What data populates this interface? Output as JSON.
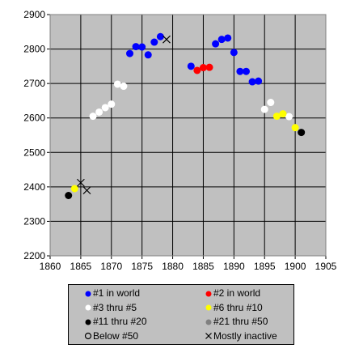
{
  "chart_data": {
    "type": "scatter",
    "xlim": [
      1860,
      1905
    ],
    "ylim": [
      2200,
      2900
    ],
    "x_ticks": [
      1860,
      1865,
      1870,
      1875,
      1880,
      1885,
      1890,
      1895,
      1900,
      1905
    ],
    "y_ticks": [
      2200,
      2300,
      2400,
      2500,
      2600,
      2700,
      2800,
      2900
    ],
    "grid": true,
    "background": "#c0c0c0",
    "legend_position": "bottom",
    "series": [
      {
        "name": "#1 in world",
        "marker": "dot",
        "color": "#0000ff",
        "points": [
          [
            1873,
            2787
          ],
          [
            1874,
            2807
          ],
          [
            1875,
            2806
          ],
          [
            1876,
            2783
          ],
          [
            1877,
            2820
          ],
          [
            1878,
            2836
          ],
          [
            1883,
            2750
          ],
          [
            1887,
            2815
          ],
          [
            1888,
            2828
          ],
          [
            1889,
            2832
          ],
          [
            1890,
            2790
          ],
          [
            1891,
            2735
          ],
          [
            1892,
            2735
          ],
          [
            1893,
            2705
          ],
          [
            1894,
            2707
          ]
        ]
      },
      {
        "name": "#2 in world",
        "marker": "dot",
        "color": "#ff0000",
        "points": [
          [
            1884,
            2738
          ],
          [
            1885,
            2746
          ],
          [
            1886,
            2747
          ]
        ]
      },
      {
        "name": "#3 thru #5",
        "marker": "dot",
        "color": "#ffffff",
        "points": [
          [
            1867,
            2605
          ],
          [
            1868,
            2617
          ],
          [
            1869,
            2630
          ],
          [
            1870,
            2640
          ],
          [
            1871,
            2698
          ],
          [
            1872,
            2692
          ],
          [
            1895,
            2625
          ],
          [
            1896,
            2645
          ],
          [
            1899,
            2604
          ]
        ]
      },
      {
        "name": "#6 thru #10",
        "marker": "dot",
        "color": "#ffff00",
        "points": [
          [
            1864,
            2395
          ],
          [
            1897,
            2605
          ],
          [
            1898,
            2612
          ],
          [
            1900,
            2572
          ]
        ]
      },
      {
        "name": "#11 thru #20",
        "marker": "dot",
        "color": "#000000",
        "points": [
          [
            1863,
            2375
          ],
          [
            1901,
            2558
          ]
        ]
      },
      {
        "name": "#21 thru #50",
        "marker": "dot",
        "color": "#808080",
        "points": []
      },
      {
        "name": "Below #50",
        "marker": "ring",
        "color": "#000000",
        "points": []
      },
      {
        "name": "Mostly inactive",
        "marker": "cross",
        "color": "#000000",
        "points": [
          [
            1865,
            2412
          ],
          [
            1866,
            2390
          ],
          [
            1879,
            2828
          ]
        ]
      }
    ]
  }
}
